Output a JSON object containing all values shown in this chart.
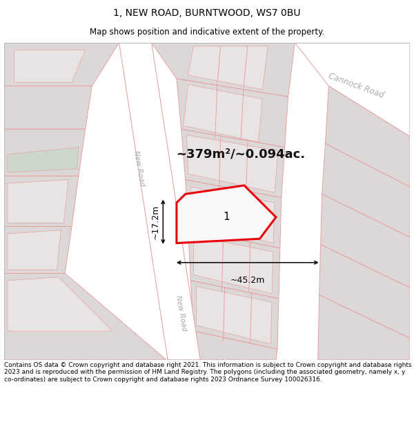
{
  "title": "1, NEW ROAD, BURNTWOOD, WS7 0BU",
  "subtitle": "Map shows position and indicative extent of the property.",
  "footer": "Contains OS data © Crown copyright and database right 2021. This information is subject to Crown copyright and database rights 2023 and is reproduced with the permission of HM Land Registry. The polygons (including the associated geometry, namely x, y co-ordinates) are subject to Crown copyright and database rights 2023 Ordnance Survey 100026316.",
  "area_text": "~379m²/~0.094ac.",
  "width_text": "~45.2m",
  "height_text": "~17.2m",
  "plot_label": "1",
  "cannock_road_label": "Cannock Road",
  "new_road_label_top": "New Road",
  "new_road_label_bottom": "New Road",
  "map_bg_color": "#f2f0f0",
  "road_color": "#ffffff",
  "plot_outline_color": "#e8000a",
  "grid_line_color": "#e8a0a0",
  "building_fill": "#ddd8d8",
  "green_fill": "#ccd8cc",
  "title_color": "#000000",
  "footer_color": "#000000"
}
